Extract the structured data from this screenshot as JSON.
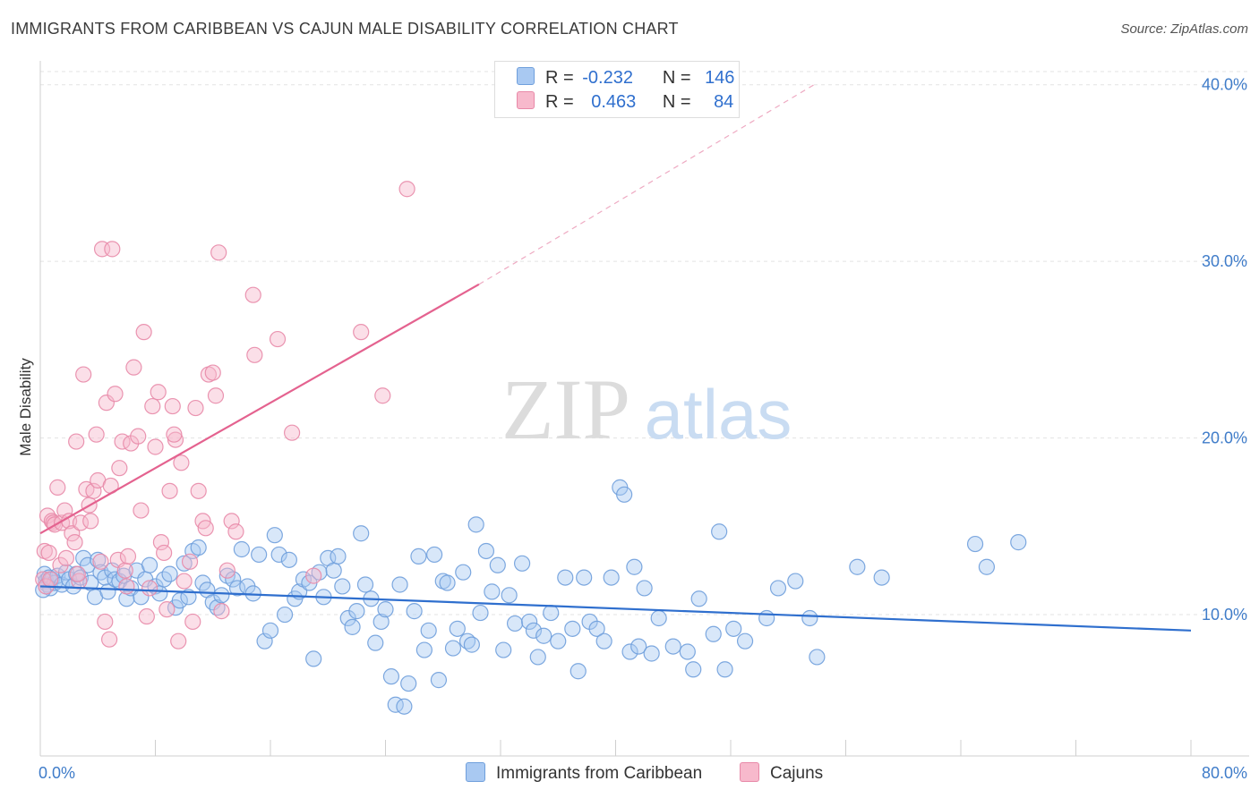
{
  "title": "IMMIGRANTS FROM CARIBBEAN VS CAJUN MALE DISABILITY CORRELATION CHART",
  "source": "Source: ZipAtlas.com",
  "watermark": {
    "zip": "ZIP",
    "atlas": "atlas"
  },
  "legend": {
    "rows": [
      {
        "r_label": "R =",
        "r_value": "-0.232",
        "n_label": "N =",
        "n_value": "146",
        "color": "#a9c9f2",
        "border": "#6f9fdc"
      },
      {
        "r_label": "R =",
        "r_value": "0.463",
        "n_label": "N =",
        "n_value": "84",
        "color": "#f7b9cc",
        "border": "#e889a8"
      }
    ]
  },
  "bottom_legend": [
    {
      "label": "Immigrants from Caribbean",
      "color": "#a9c9f2",
      "border": "#6f9fdc"
    },
    {
      "label": "Cajuns",
      "color": "#f7b9cc",
      "border": "#e889a8"
    }
  ],
  "chart_data": {
    "type": "scatter",
    "xlabel": "",
    "ylabel": "Male Disability",
    "xlim": [
      0,
      80
    ],
    "ylim": [
      2,
      41
    ],
    "x_ticks": [
      "0.0%",
      "80.0%"
    ],
    "y_ticks": [
      {
        "value": 10,
        "label": "10.0%"
      },
      {
        "value": 20,
        "label": "20.0%"
      },
      {
        "value": 30,
        "label": "30.0%"
      },
      {
        "value": 40,
        "label": "40.0%"
      }
    ],
    "grid": true,
    "series": [
      {
        "name": "Immigrants from Caribbean",
        "color": "#6f9fdc",
        "fill": "#a9c9f2",
        "trend": {
          "x0": 0,
          "y0": 11.6,
          "x1": 80,
          "y1": 9.1,
          "style": "solid"
        },
        "points": [
          [
            0.3,
            12.3
          ],
          [
            0.4,
            11.9
          ],
          [
            0.5,
            11.7
          ],
          [
            0.6,
            12.1
          ],
          [
            0.7,
            11.5
          ],
          [
            0.8,
            12.0
          ],
          [
            1.0,
            11.8
          ],
          [
            1.2,
            12.2
          ],
          [
            1.5,
            11.7
          ],
          [
            1.8,
            12.4
          ],
          [
            2.0,
            12.0
          ],
          [
            2.3,
            11.6
          ],
          [
            2.5,
            12.3
          ],
          [
            2.8,
            12.1
          ],
          [
            3.0,
            13.2
          ],
          [
            3.3,
            12.8
          ],
          [
            3.5,
            11.8
          ],
          [
            3.8,
            11.0
          ],
          [
            4.0,
            13.1
          ],
          [
            4.2,
            12.4
          ],
          [
            4.5,
            12.1
          ],
          [
            4.7,
            11.3
          ],
          [
            5.0,
            12.5
          ],
          [
            5.2,
            12.0
          ],
          [
            5.5,
            11.9
          ],
          [
            5.8,
            12.2
          ],
          [
            6.0,
            10.9
          ],
          [
            6.3,
            11.5
          ],
          [
            6.7,
            12.5
          ],
          [
            7.0,
            11.0
          ],
          [
            7.3,
            12.0
          ],
          [
            7.6,
            12.8
          ],
          [
            8.0,
            11.6
          ],
          [
            8.3,
            11.2
          ],
          [
            8.6,
            12.0
          ],
          [
            9.0,
            12.3
          ],
          [
            9.4,
            10.4
          ],
          [
            9.7,
            10.8
          ],
          [
            10.0,
            12.9
          ],
          [
            10.3,
            11.0
          ],
          [
            10.6,
            13.6
          ],
          [
            11.0,
            13.8
          ],
          [
            11.3,
            11.8
          ],
          [
            11.6,
            11.4
          ],
          [
            12.0,
            10.7
          ],
          [
            12.3,
            10.4
          ],
          [
            12.6,
            11.1
          ],
          [
            13.0,
            12.2
          ],
          [
            13.4,
            12.0
          ],
          [
            13.7,
            11.5
          ],
          [
            14.0,
            13.7
          ],
          [
            14.4,
            11.6
          ],
          [
            14.8,
            11.2
          ],
          [
            15.2,
            13.4
          ],
          [
            15.6,
            8.5
          ],
          [
            16.0,
            9.1
          ],
          [
            16.3,
            14.5
          ],
          [
            16.6,
            13.4
          ],
          [
            17.0,
            10.0
          ],
          [
            17.3,
            13.1
          ],
          [
            17.7,
            10.9
          ],
          [
            18.0,
            11.3
          ],
          [
            18.3,
            12.0
          ],
          [
            18.7,
            11.8
          ],
          [
            19.0,
            7.5
          ],
          [
            19.4,
            12.4
          ],
          [
            19.7,
            11.0
          ],
          [
            20.0,
            13.2
          ],
          [
            20.4,
            12.5
          ],
          [
            20.7,
            13.3
          ],
          [
            21.0,
            11.6
          ],
          [
            21.4,
            9.8
          ],
          [
            21.7,
            9.3
          ],
          [
            22.0,
            10.2
          ],
          [
            22.3,
            14.6
          ],
          [
            22.6,
            11.7
          ],
          [
            23.0,
            10.9
          ],
          [
            23.3,
            8.4
          ],
          [
            23.7,
            9.6
          ],
          [
            24.0,
            10.3
          ],
          [
            24.4,
            6.5
          ],
          [
            24.7,
            4.9
          ],
          [
            25.0,
            11.7
          ],
          [
            25.3,
            4.8
          ],
          [
            25.6,
            6.1
          ],
          [
            26.0,
            10.2
          ],
          [
            26.3,
            13.3
          ],
          [
            26.7,
            8.0
          ],
          [
            27.0,
            9.1
          ],
          [
            27.4,
            13.4
          ],
          [
            27.7,
            6.3
          ],
          [
            28.0,
            11.9
          ],
          [
            28.3,
            11.8
          ],
          [
            28.7,
            8.1
          ],
          [
            29.0,
            9.2
          ],
          [
            29.4,
            12.4
          ],
          [
            29.7,
            8.5
          ],
          [
            30.0,
            8.3
          ],
          [
            30.3,
            15.1
          ],
          [
            30.6,
            10.1
          ],
          [
            31.0,
            13.6
          ],
          [
            31.4,
            11.3
          ],
          [
            31.8,
            12.8
          ],
          [
            32.2,
            8.0
          ],
          [
            32.6,
            11.1
          ],
          [
            33.0,
            9.5
          ],
          [
            33.5,
            12.9
          ],
          [
            34.0,
            9.6
          ],
          [
            34.3,
            9.1
          ],
          [
            34.6,
            7.6
          ],
          [
            35.0,
            8.8
          ],
          [
            35.5,
            10.1
          ],
          [
            36.0,
            8.5
          ],
          [
            36.5,
            12.1
          ],
          [
            37.0,
            9.2
          ],
          [
            37.4,
            6.8
          ],
          [
            37.8,
            12.1
          ],
          [
            38.2,
            9.6
          ],
          [
            38.7,
            9.2
          ],
          [
            39.2,
            8.5
          ],
          [
            39.7,
            12.1
          ],
          [
            40.3,
            17.2
          ],
          [
            40.6,
            16.8
          ],
          [
            41.0,
            7.9
          ],
          [
            41.3,
            12.7
          ],
          [
            41.6,
            8.2
          ],
          [
            42.0,
            11.5
          ],
          [
            42.5,
            7.8
          ],
          [
            43.0,
            9.8
          ],
          [
            44.0,
            8.2
          ],
          [
            45.0,
            7.9
          ],
          [
            45.4,
            6.9
          ],
          [
            45.8,
            10.9
          ],
          [
            46.8,
            8.9
          ],
          [
            47.2,
            14.7
          ],
          [
            47.6,
            6.9
          ],
          [
            48.2,
            9.2
          ],
          [
            49.0,
            8.5
          ],
          [
            50.5,
            9.8
          ],
          [
            51.3,
            11.5
          ],
          [
            52.5,
            11.9
          ],
          [
            53.5,
            9.8
          ],
          [
            54.0,
            7.6
          ],
          [
            56.8,
            12.7
          ],
          [
            58.5,
            12.1
          ],
          [
            65.0,
            14.0
          ],
          [
            65.8,
            12.7
          ],
          [
            68.0,
            14.1
          ],
          [
            0.2,
            11.4
          ]
        ]
      },
      {
        "name": "Cajuns",
        "color": "#e889a8",
        "fill": "#f7b9cc",
        "trend": {
          "x0": 0,
          "y0": 14.6,
          "x1": 30.5,
          "y1": 28.7,
          "dash_x1": 54,
          "dash_y1": 40.1,
          "style": "solid+dashed"
        },
        "points": [
          [
            0.2,
            12.0
          ],
          [
            0.3,
            13.6
          ],
          [
            0.4,
            11.6
          ],
          [
            0.5,
            15.6
          ],
          [
            0.7,
            12.0
          ],
          [
            0.8,
            15.3
          ],
          [
            0.9,
            15.2
          ],
          [
            1.0,
            15.1
          ],
          [
            1.2,
            17.2
          ],
          [
            1.4,
            12.8
          ],
          [
            1.5,
            15.2
          ],
          [
            1.7,
            15.9
          ],
          [
            1.8,
            13.2
          ],
          [
            2.0,
            15.3
          ],
          [
            2.2,
            14.6
          ],
          [
            2.4,
            14.1
          ],
          [
            2.5,
            19.8
          ],
          [
            2.7,
            11.9
          ],
          [
            2.8,
            15.2
          ],
          [
            3.0,
            23.6
          ],
          [
            3.2,
            17.1
          ],
          [
            3.4,
            16.2
          ],
          [
            3.5,
            15.3
          ],
          [
            3.7,
            17.0
          ],
          [
            3.9,
            20.2
          ],
          [
            4.0,
            17.6
          ],
          [
            4.2,
            13.0
          ],
          [
            4.3,
            30.7
          ],
          [
            4.5,
            9.6
          ],
          [
            4.6,
            22.0
          ],
          [
            4.8,
            8.6
          ],
          [
            4.9,
            17.3
          ],
          [
            5.0,
            30.7
          ],
          [
            5.2,
            22.5
          ],
          [
            5.4,
            13.1
          ],
          [
            5.5,
            18.3
          ],
          [
            5.7,
            19.8
          ],
          [
            5.9,
            12.5
          ],
          [
            6.0,
            11.6
          ],
          [
            6.3,
            19.7
          ],
          [
            6.5,
            24.0
          ],
          [
            6.8,
            20.1
          ],
          [
            7.0,
            15.9
          ],
          [
            7.2,
            26.0
          ],
          [
            7.4,
            9.9
          ],
          [
            7.6,
            11.5
          ],
          [
            7.8,
            21.8
          ],
          [
            8.0,
            19.5
          ],
          [
            8.2,
            22.6
          ],
          [
            8.4,
            14.1
          ],
          [
            8.6,
            13.5
          ],
          [
            8.8,
            10.3
          ],
          [
            9.0,
            17.0
          ],
          [
            9.2,
            21.8
          ],
          [
            9.4,
            19.9
          ],
          [
            9.6,
            8.5
          ],
          [
            9.8,
            18.6
          ],
          [
            10.0,
            11.9
          ],
          [
            10.4,
            13.0
          ],
          [
            10.6,
            9.6
          ],
          [
            10.8,
            21.7
          ],
          [
            11.0,
            17.0
          ],
          [
            11.3,
            15.3
          ],
          [
            11.5,
            14.9
          ],
          [
            11.7,
            23.6
          ],
          [
            12.0,
            23.7
          ],
          [
            12.2,
            22.4
          ],
          [
            12.4,
            30.5
          ],
          [
            12.6,
            10.2
          ],
          [
            13.0,
            12.5
          ],
          [
            13.3,
            15.3
          ],
          [
            13.6,
            14.7
          ],
          [
            14.8,
            28.1
          ],
          [
            14.9,
            24.7
          ],
          [
            16.5,
            25.6
          ],
          [
            17.5,
            20.3
          ],
          [
            19.0,
            12.2
          ],
          [
            22.3,
            26.0
          ],
          [
            23.8,
            22.4
          ],
          [
            25.5,
            34.1
          ],
          [
            2.6,
            12.3
          ],
          [
            6.1,
            13.3
          ],
          [
            9.3,
            20.2
          ],
          [
            0.6,
            13.5
          ]
        ]
      }
    ]
  }
}
